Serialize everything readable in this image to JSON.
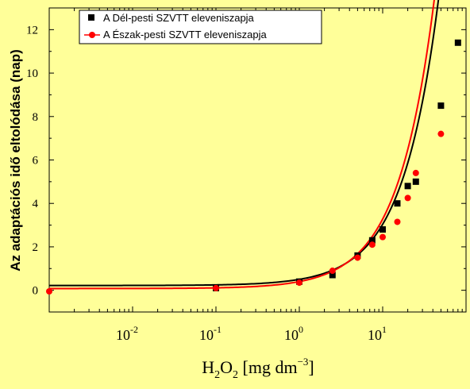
{
  "chart_data": {
    "type": "scatter",
    "xlabel": "H2O2 [mg dm-3]",
    "xlabel_parts": {
      "h": "H",
      "s1": "2",
      "o": "O",
      "s2": "2",
      "unit": " [mg dm",
      "sup": "−3",
      "close": "]"
    },
    "ylabel": "Az adaptációs idő eltolódása (nap)",
    "xscale": "log",
    "xlim": [
      0.001,
      100
    ],
    "ylim": [
      -1,
      13
    ],
    "xticks": [
      {
        "base": "10",
        "exp": "-2",
        "value": 0.01
      },
      {
        "base": "10",
        "exp": "-1",
        "value": 0.1
      },
      {
        "base": "10",
        "exp": "0",
        "value": 1
      },
      {
        "base": "10",
        "exp": "1",
        "value": 10
      }
    ],
    "yticks": [
      0,
      2,
      4,
      6,
      8,
      10,
      12
    ],
    "legend_position": "top-left",
    "series": [
      {
        "name": "A Dél-pesti SZVTT eleveniszapja",
        "marker": "square",
        "color": "#000000",
        "x": [
          0.1,
          1,
          2.5,
          5,
          7.5,
          10,
          15,
          20,
          25,
          50,
          80
        ],
        "y": [
          0.1,
          0.4,
          0.7,
          1.6,
          2.3,
          2.8,
          4.0,
          4.8,
          5.0,
          8.5,
          11.4
        ],
        "fit": {
          "a": 0.22,
          "b": 0.282
        }
      },
      {
        "name": "A Észak-pesti SZVTT eleveniszapja",
        "marker": "circle",
        "color": "#FF0000",
        "x": [
          0.001,
          0.1,
          1,
          2.5,
          5,
          7.5,
          10,
          15,
          20,
          25,
          50
        ],
        "y": [
          -0.05,
          0.1,
          0.35,
          0.9,
          1.5,
          2.1,
          2.45,
          3.15,
          4.25,
          5.4,
          7.2
        ],
        "fit": {
          "a": 0.08,
          "b": 0.32
        }
      }
    ]
  }
}
